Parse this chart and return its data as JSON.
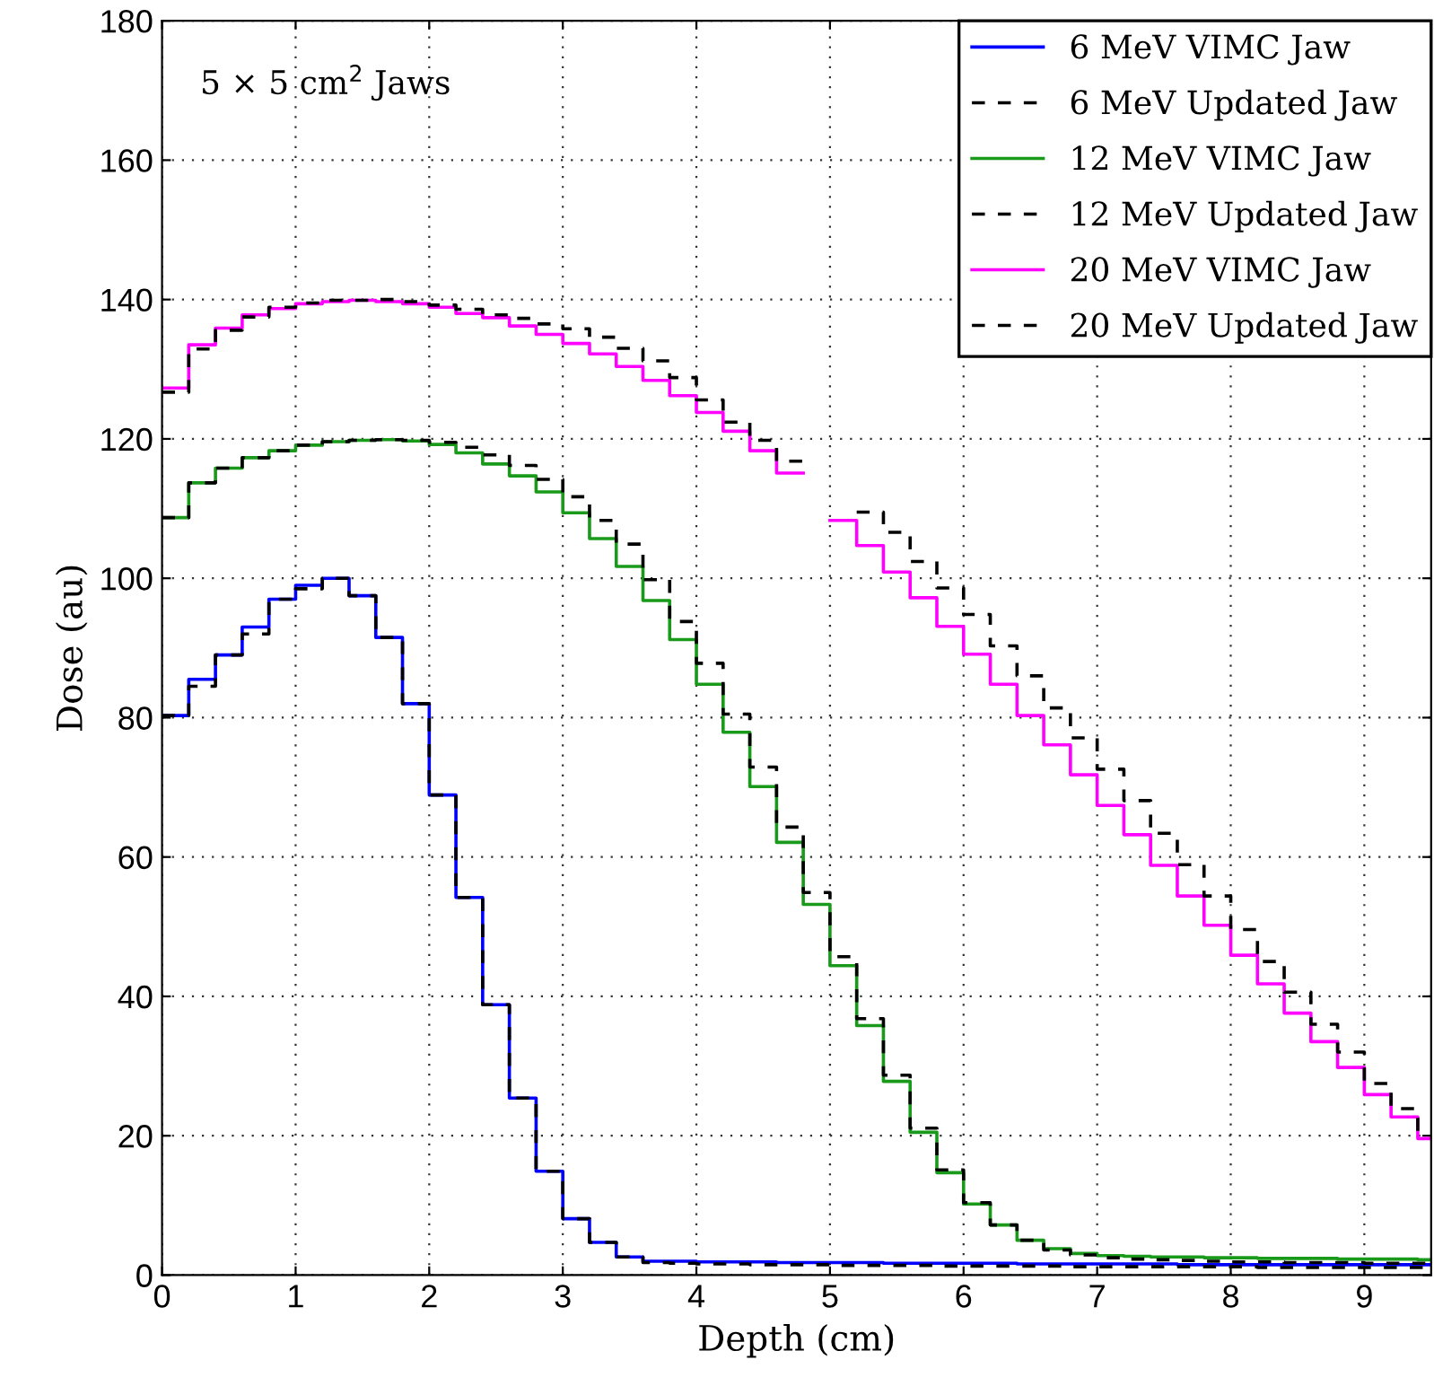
{
  "chart_data": {
    "type": "step",
    "xlabel": "Depth (cm)",
    "ylabel": "Dose (au)",
    "annotations": [
      "5 × 5 cm$^{2}$ Jaws"
    ],
    "x": [
      0,
      0.2,
      0.4,
      0.6,
      0.8,
      1.0,
      1.2,
      1.4,
      1.6,
      1.8,
      2.0,
      2.2,
      2.4,
      2.6,
      2.8,
      3.0,
      3.2,
      3.4,
      3.6,
      3.8,
      4.0,
      4.2,
      4.4,
      4.6,
      4.8,
      5.0,
      5.2,
      5.4,
      5.6,
      5.8,
      6.0,
      6.2,
      6.4,
      6.6,
      6.8,
      7.0,
      7.2,
      7.4,
      7.6,
      7.8,
      8.0,
      8.2,
      8.4,
      8.6,
      8.8,
      9.0,
      9.2,
      9.4,
      9.5
    ],
    "xlim": [
      0,
      9.5
    ],
    "xticks": [
      0,
      1,
      2,
      3,
      4,
      5,
      6,
      7,
      8,
      9
    ],
    "ylim": [
      0,
      180
    ],
    "yticks": [
      0,
      20,
      40,
      60,
      80,
      100,
      120,
      140,
      160,
      180
    ],
    "grid": true,
    "legend": "top right",
    "series": [
      {
        "name": "6 MeV VIMC Jaw",
        "color": "#0000ff",
        "line_style": "solid",
        "values": [
          80.3,
          85.5,
          89,
          93,
          97,
          99,
          100,
          97.5,
          91.5,
          82,
          68.9,
          54.2,
          38.8,
          25.4,
          14.9,
          8.1,
          4.7,
          2.6,
          2.0,
          2.0,
          1.9,
          1.9,
          1.9,
          1.8,
          1.8,
          1.8,
          1.8,
          1.7,
          1.7,
          1.7,
          1.7,
          1.7,
          1.6,
          1.6,
          1.6,
          1.6,
          1.6,
          1.6,
          1.5,
          1.5,
          1.5,
          1.5,
          1.5,
          1.5,
          1.5,
          1.5,
          1.5,
          1.5,
          1.5
        ]
      },
      {
        "name": "6 MeV Updated Jaw",
        "color": "#000000",
        "line_style": "dashed",
        "values": [
          80.3,
          84.5,
          89,
          92,
          97,
          98.5,
          100,
          97.5,
          91.5,
          82,
          68.9,
          54.2,
          38.8,
          25.4,
          14.9,
          8.1,
          4.7,
          2.6,
          1.8,
          1.7,
          1.6,
          1.6,
          1.5,
          1.5,
          1.5,
          1.4,
          1.4,
          1.4,
          1.4,
          1.3,
          1.3,
          1.3,
          1.3,
          1.3,
          1.2,
          1.2,
          1.2,
          1.2,
          1.2,
          1.2,
          1.2,
          1.1,
          1.1,
          1.1,
          1.1,
          1.1,
          1.1,
          1.1,
          1.1
        ]
      },
      {
        "name": "12 MeV VIMC Jaw",
        "color": "#1a9a1a",
        "line_style": "solid",
        "values": [
          108.7,
          113.7,
          115.8,
          117.3,
          118.3,
          119.1,
          119.6,
          119.8,
          119.9,
          119.7,
          119.2,
          118.0,
          116.4,
          114.7,
          112.4,
          109.4,
          105.7,
          101.7,
          96.8,
          91.2,
          84.8,
          77.9,
          70.1,
          62.1,
          53.2,
          44.4,
          35.8,
          27.8,
          20.5,
          14.7,
          10.2,
          7.2,
          5.0,
          3.8,
          3.1,
          2.8,
          2.7,
          2.6,
          2.6,
          2.5,
          2.5,
          2.4,
          2.4,
          2.4,
          2.3,
          2.3,
          2.3,
          2.2,
          2.2
        ]
      },
      {
        "name": "12 MeV Updated Jaw",
        "color": "#000000",
        "line_style": "dashed",
        "values": [
          108.7,
          113.7,
          115.8,
          117.3,
          118.3,
          119.1,
          119.6,
          119.8,
          119.9,
          119.8,
          119.5,
          118.8,
          117.7,
          116.2,
          114.2,
          111.7,
          108.3,
          104.9,
          99.8,
          93.8,
          87.8,
          80.5,
          72.9,
          64.3,
          54.9,
          45.7,
          36.8,
          28.7,
          21.1,
          15.1,
          10.4,
          7.2,
          5.0,
          3.6,
          2.9,
          2.5,
          2.3,
          2.2,
          2.1,
          2.0,
          1.9,
          1.9,
          1.8,
          1.8,
          1.8,
          1.7,
          1.7,
          1.7,
          1.7
        ]
      },
      {
        "name": "20 MeV VIMC Jaw",
        "color": "#ff00ff",
        "line_style": "solid",
        "values": [
          127.3,
          133.5,
          135.9,
          137.8,
          138.7,
          139.4,
          139.7,
          139.9,
          139.7,
          139.4,
          138.9,
          138.0,
          137.4,
          136.2,
          135.0,
          133.7,
          132.2,
          130.4,
          128.4,
          126.2,
          123.8,
          121.1,
          118.3,
          115.1,
          null,
          108.3,
          104.7,
          100.9,
          97.2,
          93.1,
          89.1,
          84.8,
          80.3,
          76.1,
          71.8,
          67.4,
          63.2,
          58.8,
          54.4,
          50.2,
          45.9,
          41.8,
          37.6,
          33.5,
          29.8,
          25.9,
          22.7,
          19.6,
          19.6
        ]
      },
      {
        "name": "20 MeV Updated Jaw",
        "color": "#000000",
        "line_style": "dashed",
        "values": [
          126.7,
          132.9,
          135.6,
          137.5,
          138.9,
          139.5,
          139.9,
          139.9,
          140.0,
          139.7,
          139.2,
          138.6,
          137.8,
          137.3,
          136.5,
          135.8,
          134.6,
          133.0,
          131.2,
          128.8,
          125.6,
          122.4,
          119.8,
          116.8,
          null,
          null,
          109.5,
          106.6,
          102.4,
          98.6,
          94.8,
          90.3,
          86.0,
          81.4,
          77.1,
          72.6,
          68.1,
          63.4,
          58.9,
          54.4,
          49.6,
          45.0,
          40.6,
          36.0,
          32.0,
          27.5,
          23.9,
          20.7,
          20.7
        ]
      }
    ]
  }
}
